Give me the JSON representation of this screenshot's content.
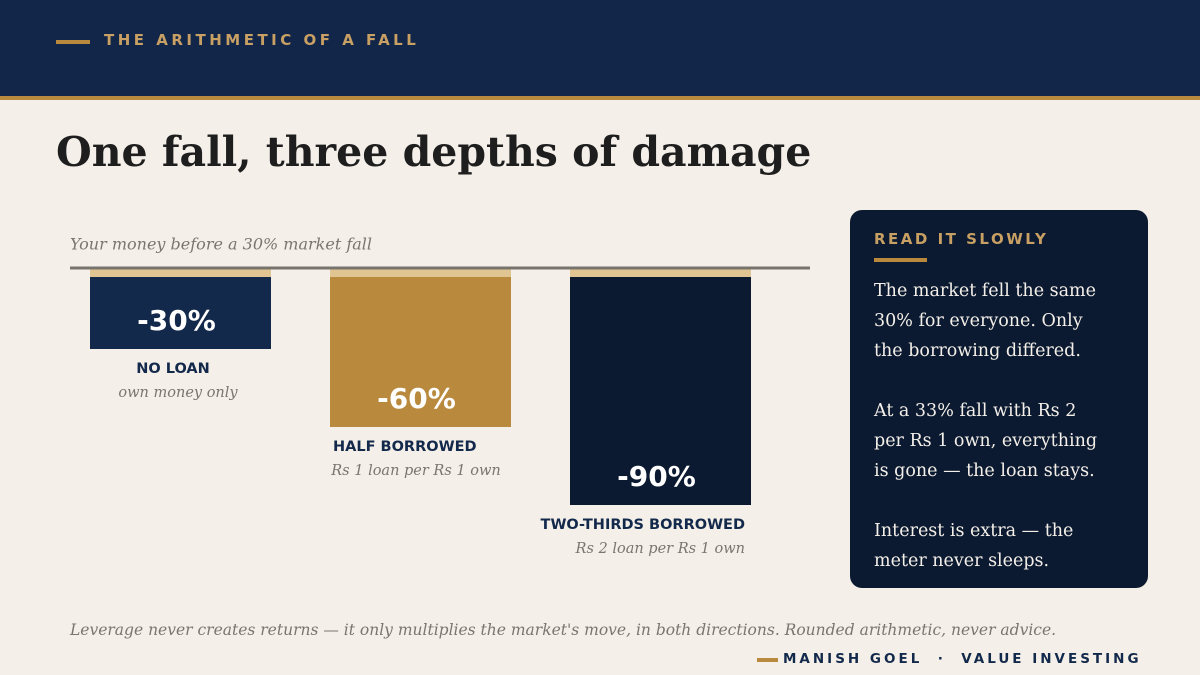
{
  "header": {
    "label": "THE ARITHMETIC OF A FALL"
  },
  "title": "One fall, three depths of damage",
  "chart_data": {
    "type": "bar",
    "subtitle": "Your money before a 30% market fall",
    "categories": [
      "NO LOAN",
      "HALF BORROWED",
      "TWO-THIRDS BORROWED"
    ],
    "sublabels": [
      "own money only",
      "Rs 1 loan per Rs 1 own",
      "Rs 2 loan per Rs 1 own"
    ],
    "values": [
      -30,
      -60,
      -90
    ],
    "value_labels": [
      "-30%",
      "-60%",
      "-90%"
    ],
    "colors": [
      "#13294b",
      "#b98a3e",
      "#0b1a30"
    ]
  },
  "sidebar": {
    "title": "READ IT SLOWLY",
    "paragraphs": [
      [
        "The market fell the same",
        "30% for everyone. Only",
        "the borrowing differed."
      ],
      [
        "At a 33% fall with Rs 2",
        "per Rs 1 own, everything",
        "is gone — the loan stays."
      ],
      [
        "Interest is extra — the",
        "meter never sleeps."
      ]
    ]
  },
  "footer": {
    "note": "Leverage never creates returns — it only multiplies the market's move, in both directions. Rounded arithmetic, never advice.",
    "brand": "MANISH GOEL  ·  VALUE INVESTING"
  }
}
